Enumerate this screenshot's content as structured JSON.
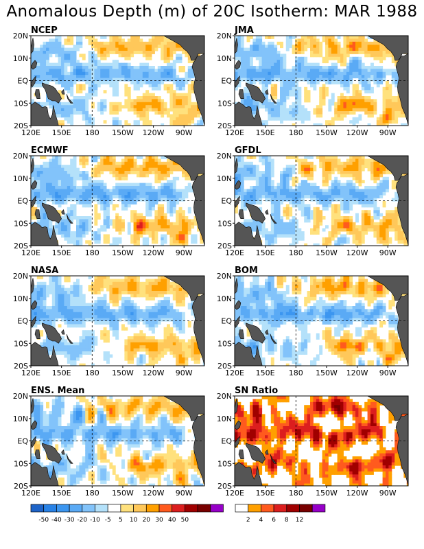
{
  "title": "Anomalous Depth (m) of 20C Isotherm: MAR 1988",
  "axes": {
    "x_ticks": [
      "120E",
      "150E",
      "180",
      "150W",
      "120W",
      "90W"
    ],
    "y_ticks": [
      "20N",
      "10N",
      "EQ",
      "10S",
      "20S"
    ],
    "x_range": [
      120,
      290
    ],
    "y_range": [
      -20,
      20
    ]
  },
  "panels": [
    {
      "label": "NCEP"
    },
    {
      "label": "JMA"
    },
    {
      "label": "ECMWF"
    },
    {
      "label": "GFDL"
    },
    {
      "label": "NASA"
    },
    {
      "label": "BOM"
    },
    {
      "label": "ENS. Mean"
    },
    {
      "label": "SN Ratio"
    }
  ],
  "chart_data": {
    "type": "heatmap",
    "title": "Anomalous Depth (m) of 20C Isotherm: MAR 1988",
    "x": "longitude 120E to 70W",
    "y": "latitude 20S to 20N",
    "panels": [
      "NCEP",
      "JMA",
      "ECMWF",
      "GFDL",
      "NASA",
      "BOM",
      "ENS. Mean",
      "SN Ratio"
    ],
    "colorbar_depth": {
      "labels": [
        "-50",
        "-40",
        "-30",
        "-20",
        "-10",
        "-5",
        "5",
        "10",
        "20",
        "30",
        "40",
        "50"
      ],
      "colors": [
        "#1e64c8",
        "#2882e6",
        "#3c96f0",
        "#5aaaf5",
        "#82c3fa",
        "#b4e1fa",
        "#ffffff",
        "#ffe17d",
        "#ffc85a",
        "#ffa000",
        "#ff5a1e",
        "#dc1e1e",
        "#a00000",
        "#780000",
        "#9600c8"
      ]
    },
    "colorbar_sn": {
      "labels": [
        "2",
        "4",
        "6",
        "8",
        "12"
      ],
      "colors": [
        "#ffffff",
        "#ffa000",
        "#ff5a1e",
        "#dc1e1e",
        "#a00000",
        "#780000",
        "#9600c8"
      ]
    }
  }
}
